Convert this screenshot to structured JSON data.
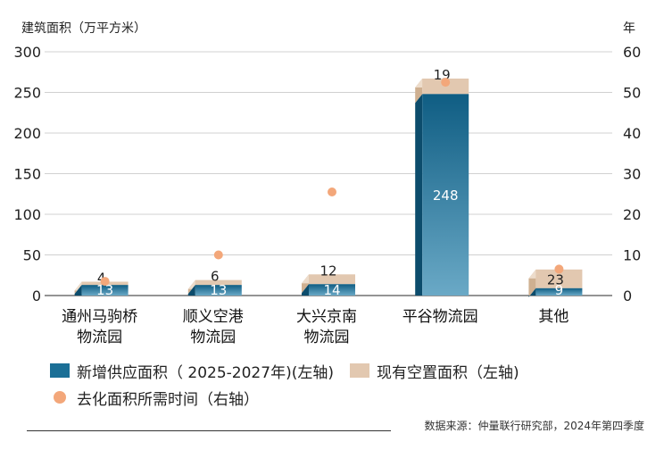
{
  "chart_data": {
    "type": "bar",
    "left_axis_title": "建筑面积（万平方米）",
    "right_axis_title": "年",
    "categories": [
      [
        "通州马驹桥",
        "物流园"
      ],
      [
        "顺义空港",
        "物流园"
      ],
      [
        "大兴京南",
        "物流园"
      ],
      [
        "平谷物流园"
      ],
      [
        "其他"
      ]
    ],
    "series": [
      {
        "name": "新增供应面积（ 2025-2027年)(左轴)",
        "type": "stacked-bar",
        "axis": "left",
        "values": [
          13,
          13,
          14,
          248,
          9
        ],
        "color": "#1b6f96"
      },
      {
        "name": "现有空置面积（左轴)",
        "type": "stacked-bar",
        "axis": "left",
        "values": [
          4,
          6,
          12,
          19,
          23
        ],
        "color": "#e2c8b0"
      },
      {
        "name": "去化面积所需时间（右轴）",
        "type": "scatter",
        "axis": "right",
        "values": [
          3.5,
          10,
          25.5,
          52.5,
          6.5
        ],
        "color": "#f3a77a"
      }
    ],
    "ylim_left": [
      0,
      300
    ],
    "yticks_left": [
      0,
      50,
      100,
      150,
      200,
      250,
      300
    ],
    "ylim_right": [
      0,
      60
    ],
    "yticks_right": [
      0,
      10,
      20,
      30,
      40,
      50,
      60
    ]
  },
  "legend": {
    "new_supply": "新增供应面积（ 2025-2027年)(左轴)",
    "vacant": "现有空置面积（左轴)",
    "absorption": "去化面积所需时间（右轴）"
  },
  "source": "数据来源：仲量联行研究部，2024年第四季度"
}
